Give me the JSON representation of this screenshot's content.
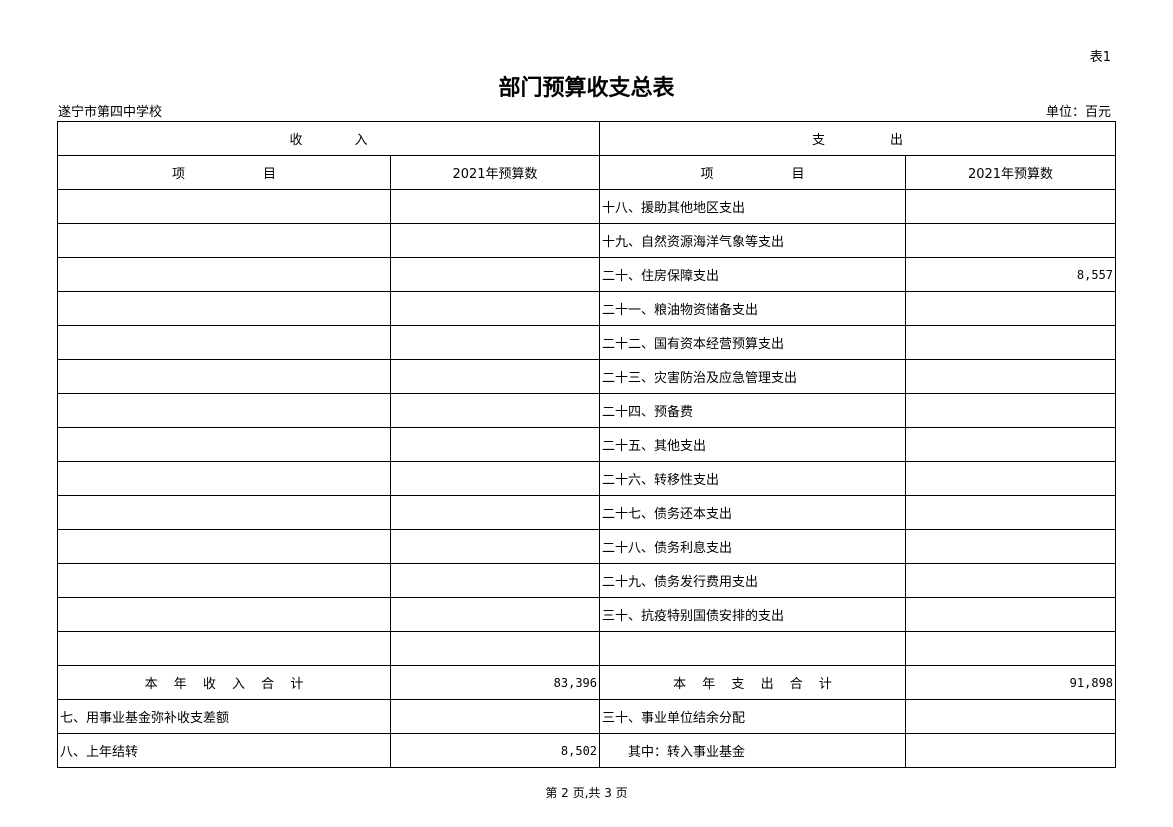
{
  "table_no": "表1",
  "title": "部门预算收支总表",
  "org": "遂宁市第四中学校",
  "unit": "单位：百元",
  "header": {
    "income": "收　　　　入",
    "expense": "支　　　　　出",
    "item": "项　　　　　　目",
    "budget": "2021年预算数"
  },
  "rows": [
    {
      "inc": "",
      "inc_val": "",
      "exp": "十八、援助其他地区支出",
      "exp_val": ""
    },
    {
      "inc": "",
      "inc_val": "",
      "exp": "十九、自然资源海洋气象等支出",
      "exp_val": ""
    },
    {
      "inc": "",
      "inc_val": "",
      "exp": "二十、住房保障支出",
      "exp_val": "8,557"
    },
    {
      "inc": "",
      "inc_val": "",
      "exp": "二十一、粮油物资储备支出",
      "exp_val": ""
    },
    {
      "inc": "",
      "inc_val": "",
      "exp": "二十二、国有资本经营预算支出",
      "exp_val": ""
    },
    {
      "inc": "",
      "inc_val": "",
      "exp": "二十三、灾害防治及应急管理支出",
      "exp_val": ""
    },
    {
      "inc": "",
      "inc_val": "",
      "exp": "二十四、预备费",
      "exp_val": ""
    },
    {
      "inc": "",
      "inc_val": "",
      "exp": "二十五、其他支出",
      "exp_val": ""
    },
    {
      "inc": "",
      "inc_val": "",
      "exp": "二十六、转移性支出",
      "exp_val": ""
    },
    {
      "inc": "",
      "inc_val": "",
      "exp": "二十七、债务还本支出",
      "exp_val": ""
    },
    {
      "inc": "",
      "inc_val": "",
      "exp": "二十八、债务利息支出",
      "exp_val": ""
    },
    {
      "inc": "",
      "inc_val": "",
      "exp": "二十九、债务发行费用支出",
      "exp_val": ""
    },
    {
      "inc": "",
      "inc_val": "",
      "exp": "三十、抗疫特别国债安排的支出",
      "exp_val": ""
    },
    {
      "inc": "",
      "inc_val": "",
      "exp": "",
      "exp_val": ""
    }
  ],
  "totals": {
    "inc": "本 年 收 入 合 计",
    "inc_val": "83,396",
    "exp": "本 年 支 出 合 计",
    "exp_val": "91,898"
  },
  "tail": [
    {
      "inc": "七、用事业基金弥补收支差额",
      "inc_val": "",
      "exp": "三十、事业单位结余分配",
      "exp_val": ""
    },
    {
      "inc": "八、上年结转",
      "inc_val": "8,502",
      "exp": "　　其中：转入事业基金",
      "exp_val": ""
    }
  ],
  "footer": "第 2 页,共 3 页"
}
